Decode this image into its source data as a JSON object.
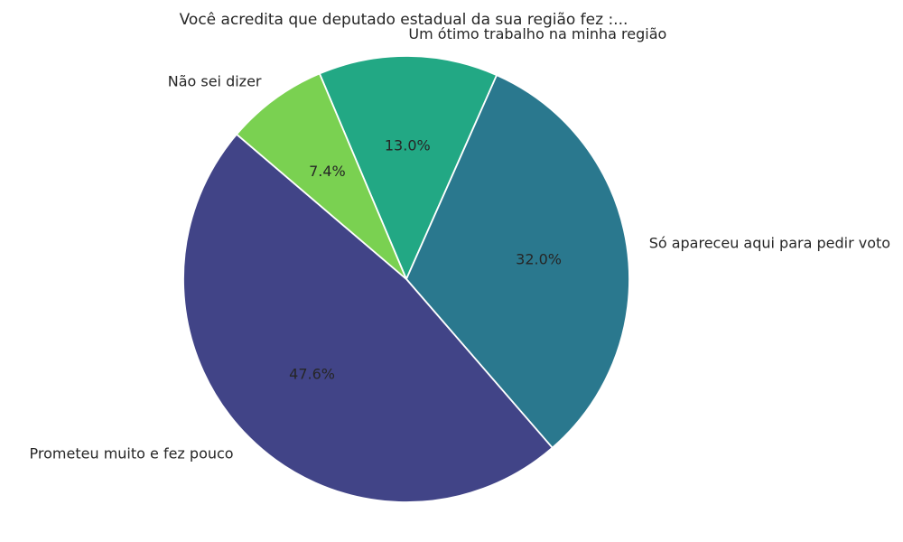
{
  "chart_data": {
    "type": "pie",
    "title": "Você acredita que deputado estadual da sua região fez :...",
    "slices": [
      {
        "label": "Um ótimo trabalho na minha região",
        "value": 13.0,
        "pct_label": "13.0%",
        "color": "#22a884"
      },
      {
        "label": "Só apareceu aqui para pedir voto",
        "value": 32.0,
        "pct_label": "32.0%",
        "color": "#2a788e"
      },
      {
        "label": "Prometeu muito e fez pouco",
        "value": 47.6,
        "pct_label": "47.6%",
        "color": "#414487"
      },
      {
        "label": "Não sei dizer",
        "value": 7.4,
        "pct_label": "7.4%",
        "color": "#7ad151"
      }
    ],
    "start_angle_deg": 112.9,
    "direction": "clockwise",
    "legend": "none",
    "text_color": "#262626",
    "wedge_edge_color": "#ffffff",
    "background_color": "#ffffff"
  }
}
